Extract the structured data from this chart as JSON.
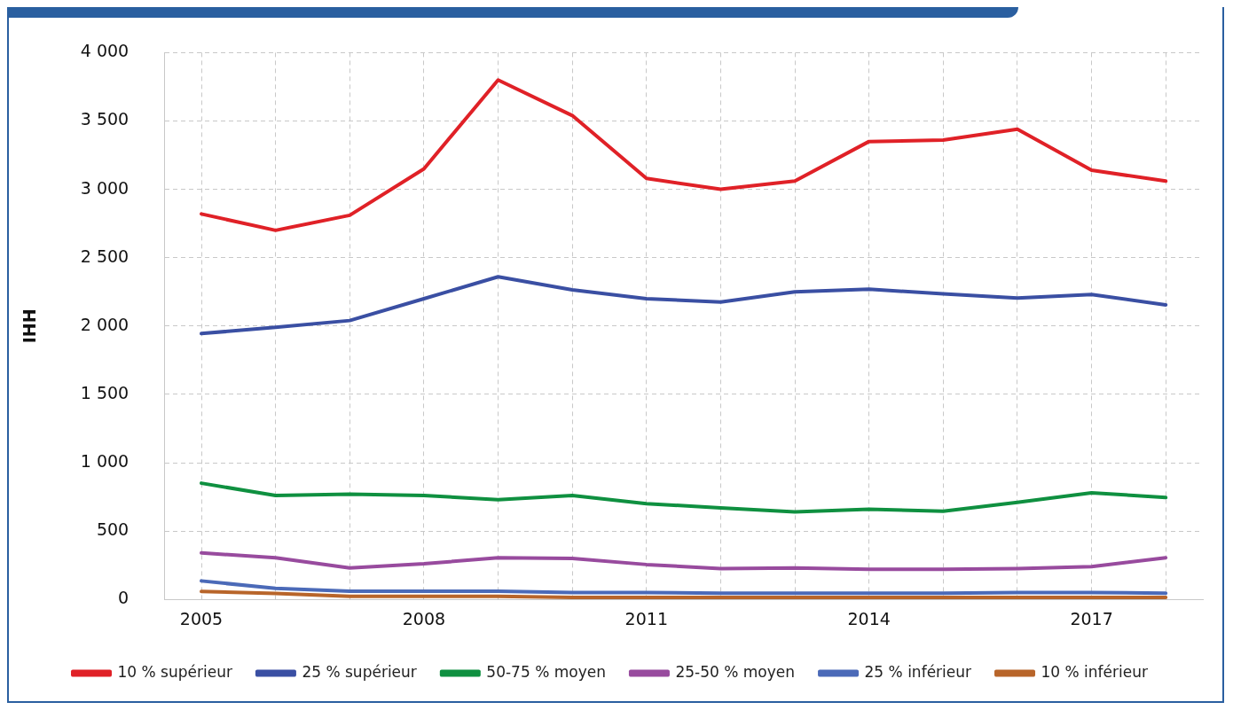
{
  "chart_data": {
    "type": "line",
    "ylabel": "IHH",
    "x": [
      2005,
      2006,
      2007,
      2008,
      2009,
      2010,
      2011,
      2012,
      2013,
      2014,
      2015,
      2016,
      2017,
      2018
    ],
    "xlim": [
      2004.5,
      2018.5
    ],
    "xticks": [
      2005,
      {
        "value": 2006,
        "label": null
      },
      {
        "value": 2007,
        "label": null
      },
      2008,
      {
        "value": 2009,
        "label": null
      },
      {
        "value": 2010,
        "label": null
      },
      2011,
      {
        "value": 2012,
        "label": null
      },
      {
        "value": 2013,
        "label": null
      },
      2014,
      {
        "value": 2015,
        "label": null
      },
      {
        "value": 2016,
        "label": null
      },
      2017,
      {
        "value": 2018,
        "label": null
      }
    ],
    "ylim": [
      0,
      4000
    ],
    "yticks": [
      {
        "value": 0,
        "label": "0"
      },
      {
        "value": 500,
        "label": "500"
      },
      {
        "value": 1000,
        "label": "1 000"
      },
      {
        "value": 1500,
        "label": "1 500"
      },
      {
        "value": 2000,
        "label": "2 000"
      },
      {
        "value": 2500,
        "label": "2 500"
      },
      {
        "value": 3000,
        "label": "3 000"
      },
      {
        "value": 3500,
        "label": "3 500"
      },
      {
        "value": 4000,
        "label": "4 000"
      }
    ],
    "grid": true,
    "legend": "bottom",
    "marker": "none",
    "line_style": "solid",
    "series": [
      {
        "name": "10 % supérieur",
        "color": "#e02127",
        "values": [
          2820,
          2700,
          2810,
          3150,
          3800,
          3540,
          3080,
          3000,
          3060,
          3350,
          3360,
          3440,
          3140,
          3060
        ]
      },
      {
        "name": "25 % supérieur",
        "color": "#3a4fa3",
        "values": [
          1945,
          1990,
          2040,
          2200,
          2360,
          2265,
          2200,
          2175,
          2250,
          2270,
          2235,
          2205,
          2230,
          2155
        ]
      },
      {
        "name": "50-75 % moyen",
        "color": "#0f9040",
        "values": [
          850,
          760,
          770,
          760,
          730,
          760,
          700,
          670,
          640,
          660,
          645,
          710,
          780,
          745
        ]
      },
      {
        "name": "25-50 % moyen",
        "color": "#984b9e",
        "values": [
          340,
          305,
          230,
          260,
          305,
          300,
          255,
          225,
          230,
          220,
          220,
          225,
          240,
          305
        ]
      },
      {
        "name": "25 % inférieur",
        "color": "#4b6ab8",
        "values": [
          135,
          80,
          60,
          60,
          60,
          50,
          50,
          45,
          45,
          45,
          45,
          50,
          50,
          45
        ]
      },
      {
        "name": "10 % inférieur",
        "color": "#b8652a",
        "values": [
          58,
          44,
          22,
          22,
          22,
          15,
          15,
          15,
          15,
          15,
          15,
          15,
          15,
          15
        ]
      }
    ]
  }
}
